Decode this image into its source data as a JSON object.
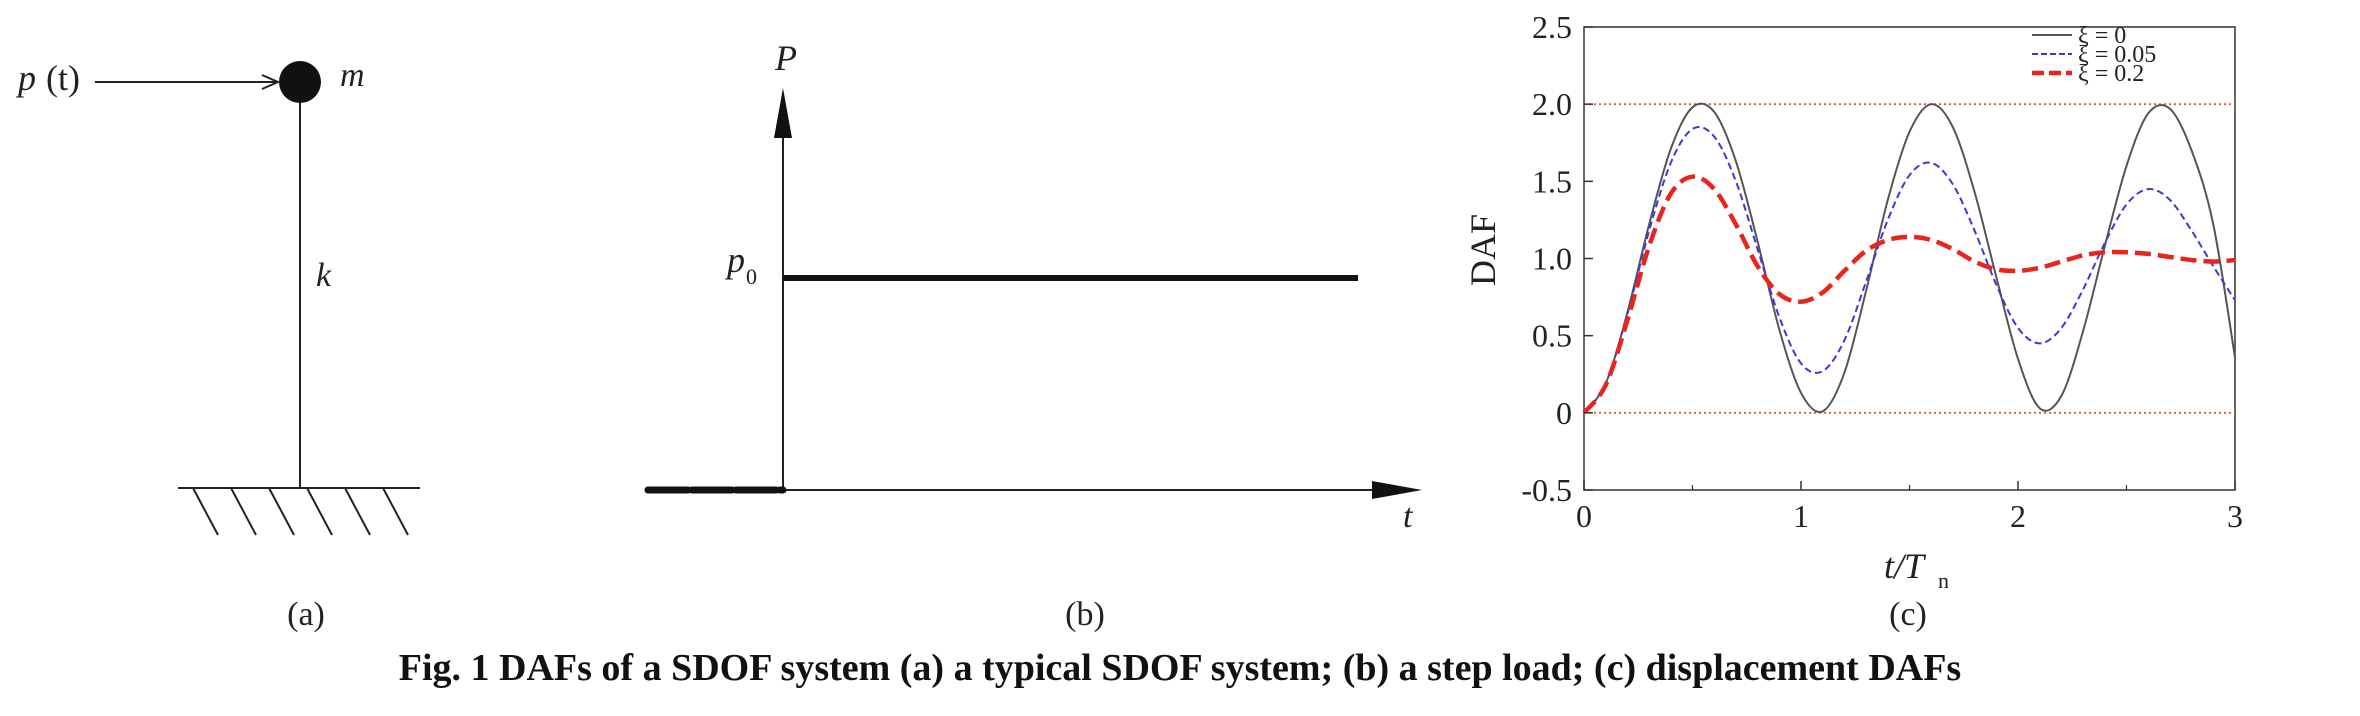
{
  "figure": {
    "caption": "Fig. 1   DAFs of a SDOF system (a) a typical SDOF system; (b) a step load; (c) displacement DAFs",
    "panel_a": {
      "label": "(a)",
      "force_main": "p",
      "force_arg": "(t)",
      "mass": "m",
      "stiffness": "k"
    },
    "panel_b": {
      "label": "(b)",
      "y_label": "P",
      "level_main": "p",
      "level_sub": "0",
      "x_label": "t"
    }
  },
  "chart_data": {
    "type": "line",
    "panel_label": "(c)",
    "xlabel_main": "t/T",
    "xlabel_sub": "n",
    "ylabel": "DAF",
    "xlim": [
      0,
      3
    ],
    "ylim": [
      -0.5,
      2.5
    ],
    "xticks": [
      0,
      1,
      2,
      3
    ],
    "xtick_labels": [
      "0",
      "1",
      "2",
      "3"
    ],
    "yticks": [
      -0.5,
      0,
      0.5,
      1.0,
      1.5,
      2.0,
      2.5
    ],
    "ytick_labels": [
      "-0.5",
      "0",
      "0.5",
      "1.0",
      "1.5",
      "2.0",
      "2.5"
    ],
    "grid": false,
    "legend_position": "top-right",
    "reference_lines": [
      {
        "y": 0,
        "color": "#e0553a",
        "style": "dotted"
      },
      {
        "y": 2.0,
        "color": "#e0553a",
        "style": "dotted"
      }
    ],
    "series": [
      {
        "name": "ξ = 0",
        "damping": 0,
        "color": "#555555",
        "style": "solid",
        "x": [
          0,
          0.1,
          0.2,
          0.3,
          0.4,
          0.5,
          0.6,
          0.7,
          0.8,
          0.9,
          1.0,
          1.1,
          1.2,
          1.3,
          1.4,
          1.5,
          1.6,
          1.7,
          1.8,
          1.9,
          2.0,
          2.1,
          2.2,
          2.3,
          2.4,
          2.5,
          2.6,
          2.7,
          2.8,
          2.9,
          3.0
        ],
        "values": [
          0,
          0.19,
          0.65,
          1.22,
          1.71,
          1.98,
          1.95,
          1.63,
          1.11,
          0.54,
          0.13,
          0.01,
          0.26,
          0.79,
          1.38,
          1.82,
          2.0,
          1.85,
          1.43,
          0.88,
          0.35,
          0.03,
          0.11,
          0.53,
          1.08,
          1.6,
          1.94,
          1.97,
          1.7,
          1.22,
          0.36
        ]
      },
      {
        "name": "ξ = 0.05",
        "damping": 0.05,
        "color": "#3a3ad6",
        "style": "dashed",
        "x": [
          0,
          0.1,
          0.2,
          0.3,
          0.4,
          0.5,
          0.6,
          0.7,
          0.8,
          0.9,
          1.0,
          1.1,
          1.2,
          1.3,
          1.4,
          1.5,
          1.6,
          1.7,
          1.8,
          1.9,
          2.0,
          2.1,
          2.2,
          2.3,
          2.4,
          2.5,
          2.6,
          2.7,
          2.8,
          2.9,
          3.0
        ],
        "values": [
          0,
          0.19,
          0.64,
          1.18,
          1.62,
          1.84,
          1.79,
          1.5,
          1.06,
          0.62,
          0.32,
          0.27,
          0.47,
          0.85,
          1.25,
          1.54,
          1.62,
          1.48,
          1.18,
          0.83,
          0.55,
          0.45,
          0.55,
          0.8,
          1.1,
          1.35,
          1.45,
          1.38,
          1.18,
          0.95,
          0.73
        ]
      },
      {
        "name": "ξ = 0.2",
        "damping": 0.2,
        "color": "#e8241c",
        "style": "dashed-thick",
        "x": [
          0,
          0.1,
          0.2,
          0.3,
          0.4,
          0.5,
          0.6,
          0.7,
          0.8,
          0.9,
          1.0,
          1.1,
          1.2,
          1.3,
          1.4,
          1.5,
          1.6,
          1.7,
          1.8,
          1.9,
          2.0,
          2.1,
          2.2,
          2.3,
          2.4,
          2.5,
          2.6,
          2.7,
          2.8,
          2.9,
          3.0
        ],
        "values": [
          0,
          0.18,
          0.6,
          1.08,
          1.42,
          1.53,
          1.45,
          1.22,
          0.95,
          0.77,
          0.72,
          0.78,
          0.92,
          1.05,
          1.12,
          1.14,
          1.12,
          1.06,
          0.98,
          0.93,
          0.92,
          0.94,
          0.98,
          1.02,
          1.04,
          1.04,
          1.03,
          1.01,
          0.99,
          0.98,
          0.99
        ]
      }
    ]
  }
}
